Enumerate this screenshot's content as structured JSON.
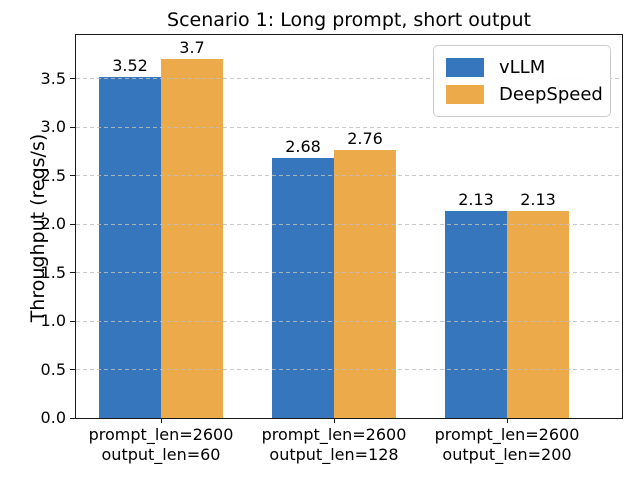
{
  "chart_data": {
    "type": "bar",
    "title": "Scenario 1: Long prompt, short output",
    "xlabel": "",
    "ylabel": "Throughput (reqs/s)",
    "categories": [
      [
        "prompt_len=2600",
        "output_len=60"
      ],
      [
        "prompt_len=2600",
        "output_len=128"
      ],
      [
        "prompt_len=2600",
        "output_len=200"
      ]
    ],
    "series": [
      {
        "name": "vLLM",
        "color": "#3576bc",
        "values": [
          3.52,
          2.68,
          2.13
        ],
        "labels": [
          "3.52",
          "2.68",
          "2.13"
        ]
      },
      {
        "name": "DeepSpeed",
        "color": "#ecaa4b",
        "values": [
          3.7,
          2.76,
          2.13
        ],
        "labels": [
          "3.7",
          "2.76",
          "2.13"
        ]
      }
    ],
    "yticks": [
      "0.0",
      "0.5",
      "1.0",
      "1.5",
      "2.0",
      "2.5",
      "3.0",
      "3.5"
    ],
    "ylim": [
      0,
      3.95
    ],
    "grid": "dashed-horizontal",
    "grid_color": "#bfbfbf",
    "legend_position": "upper right",
    "background_color": "#ffffff"
  }
}
